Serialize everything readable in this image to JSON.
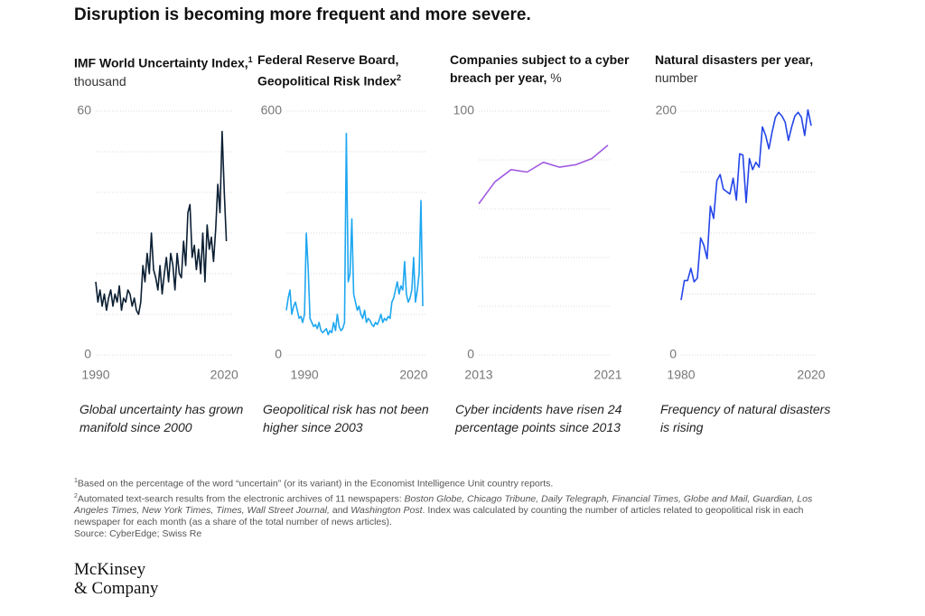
{
  "title": "Disruption is becoming more frequent and more severe.",
  "chart_data": [
    {
      "type": "line",
      "title": "IMF World Uncertainty Index,",
      "note_ref": "1",
      "unit": "thousand",
      "caption": "Global uncertainty has grown manifold since 2000",
      "color": "#0b1f33",
      "x": [
        1990,
        1990.5,
        1991,
        1991.5,
        1992,
        1992.5,
        1993,
        1993.5,
        1994,
        1994.5,
        1995,
        1995.5,
        1996,
        1996.5,
        1997,
        1997.5,
        1998,
        1998.5,
        1999,
        1999.5,
        2000,
        2000.5,
        2001,
        2001.5,
        2002,
        2002.5,
        2003,
        2003.5,
        2004,
        2004.5,
        2005,
        2005.5,
        2006,
        2006.5,
        2007,
        2007.5,
        2008,
        2008.5,
        2009,
        2009.5,
        2010,
        2010.5,
        2011,
        2011.5,
        2012,
        2012.5,
        2013,
        2013.5,
        2014,
        2014.5,
        2015,
        2015.5,
        2016,
        2016.5,
        2017,
        2017.5,
        2018,
        2018.5,
        2019,
        2019.5,
        2020,
        2020.5
      ],
      "values": [
        18,
        13,
        16,
        12,
        15,
        11,
        14,
        16,
        12,
        15,
        13,
        17,
        11,
        14,
        13,
        16,
        15,
        12,
        14,
        11,
        10,
        13,
        22,
        18,
        25,
        20,
        30,
        21,
        19,
        16,
        22,
        15,
        20,
        24,
        18,
        25,
        22,
        16,
        25,
        20,
        19,
        28,
        22,
        35,
        37,
        24,
        27,
        21,
        26,
        20,
        30,
        18,
        32,
        26,
        29,
        23,
        31,
        42,
        35,
        55,
        40,
        28
      ],
      "xlim": [
        1990,
        2021
      ],
      "ylim": [
        0,
        60
      ],
      "xticks": [
        1990,
        2020
      ],
      "yticks": [
        0,
        60
      ],
      "ygrid": [
        10,
        20,
        30,
        40,
        50
      ]
    },
    {
      "type": "line",
      "title": "Federal Reserve Board, Geopolitical Risk Index",
      "note_ref": "2",
      "caption": "Geopolitical risk has not been higher since 2003",
      "color": "#1ea7f0",
      "x": [
        1985,
        1985.5,
        1986,
        1986.5,
        1987,
        1987.5,
        1988,
        1988.5,
        1989,
        1989.5,
        1990,
        1990.5,
        1991,
        1991.5,
        1992,
        1992.5,
        1993,
        1993.5,
        1994,
        1994.5,
        1995,
        1995.5,
        1996,
        1996.5,
        1997,
        1997.5,
        1998,
        1998.5,
        1999,
        1999.5,
        2000,
        2000.5,
        2001,
        2001.5,
        2002,
        2002.5,
        2003,
        2003.5,
        2004,
        2004.5,
        2005,
        2005.5,
        2006,
        2006.5,
        2007,
        2007.5,
        2008,
        2008.5,
        2009,
        2009.5,
        2010,
        2010.5,
        2011,
        2011.5,
        2012,
        2012.5,
        2013,
        2013.5,
        2014,
        2014.5,
        2015,
        2015.5,
        2016,
        2016.5,
        2017,
        2017.5,
        2018,
        2018.5,
        2019,
        2019.5,
        2020,
        2020.5,
        2021,
        2021.5,
        2022,
        2022.5
      ],
      "values": [
        110,
        140,
        160,
        100,
        120,
        130,
        110,
        90,
        95,
        80,
        100,
        300,
        210,
        90,
        80,
        70,
        75,
        65,
        80,
        60,
        55,
        60,
        65,
        50,
        60,
        55,
        80,
        60,
        100,
        70,
        60,
        65,
        80,
        545,
        180,
        200,
        335,
        150,
        130,
        110,
        120,
        100,
        90,
        110,
        80,
        90,
        85,
        75,
        70,
        80,
        75,
        85,
        100,
        80,
        90,
        85,
        95,
        90,
        130,
        140,
        160,
        180,
        150,
        170,
        160,
        230,
        150,
        130,
        140,
        160,
        240,
        130,
        160,
        200,
        380,
        120
      ],
      "xlim": [
        1985,
        2022.5
      ],
      "ylim": [
        0,
        600
      ],
      "xticks": [
        1990,
        2020
      ],
      "yticks": [
        0,
        600
      ],
      "ygrid": [
        100,
        200,
        300,
        400,
        500
      ]
    },
    {
      "type": "line",
      "title": "Companies subject to a cyber breach per year,",
      "unit": "%",
      "caption": "Cyber incidents have risen 24 percentage points since 2013",
      "color": "#a05be0",
      "x": [
        2013,
        2014,
        2015,
        2016,
        2017,
        2018,
        2019,
        2020,
        2021
      ],
      "values": [
        62,
        71,
        76,
        75,
        79,
        77,
        78,
        80.5,
        86
      ],
      "xlim": [
        2013,
        2021
      ],
      "ylim": [
        0,
        100
      ],
      "xticks": [
        2013,
        2021
      ],
      "yticks": [
        0,
        100
      ],
      "ygrid": [
        20,
        40,
        60,
        80
      ]
    },
    {
      "type": "line",
      "title": "Natural disasters per year,",
      "unit": "number",
      "caption": "Frequency of natural disasters is rising",
      "color": "#2446e8",
      "x": [
        1980,
        1981,
        1982,
        1983,
        1984,
        1985,
        1986,
        1987,
        1988,
        1989,
        1990,
        1991,
        1992,
        1993,
        1994,
        1995,
        1996,
        1997,
        1998,
        1999,
        2000,
        2001,
        2002,
        2003,
        2004,
        2005,
        2006,
        2007,
        2008,
        2009,
        2010,
        2011,
        2012,
        2013,
        2014,
        2015,
        2016,
        2017,
        2018,
        2019,
        2020
      ],
      "values": [
        45,
        61,
        61,
        71,
        60,
        63,
        96,
        90,
        79,
        122,
        112,
        143,
        148,
        136,
        134,
        132,
        145,
        127,
        165,
        164,
        125,
        161,
        152,
        158,
        154,
        187,
        180,
        169,
        183,
        195,
        199,
        196,
        191,
        176,
        187,
        196,
        199,
        195,
        180,
        201,
        188
      ],
      "xlim": [
        1980,
        2020
      ],
      "ylim": [
        0,
        200
      ],
      "xticks": [
        1980,
        2020
      ],
      "yticks": [
        0,
        200
      ],
      "ygrid": [
        50,
        100,
        150
      ]
    }
  ],
  "footnotes": [
    {
      "mark": "1",
      "segments": [
        {
          "text": "Based on the percentage of the word “uncertain” (or its variant) in the Economist Intelligence Unit country reports."
        }
      ]
    },
    {
      "mark": "2",
      "segments": [
        {
          "text": "Automated text-search results from the electronic archives of 11 newspapers: "
        },
        {
          "text": "Boston Globe, Chicago Tribune, Daily Telegraph, Financial Times, Globe and Mail, Guardian, Los Angeles Times, New York Times, Times, Wall Street Journal,",
          "italic": true
        },
        {
          "text": " and "
        },
        {
          "text": "Washington Post",
          "italic": true
        },
        {
          "text": ". Index was calculated by counting the number of articles related to geopolitical risk in each newspaper for each month (as a share of the total number of news articles)."
        }
      ]
    }
  ],
  "source": "Source: CyberEdge; Swiss Re",
  "logo": [
    "McKinsey",
    "& Company"
  ]
}
